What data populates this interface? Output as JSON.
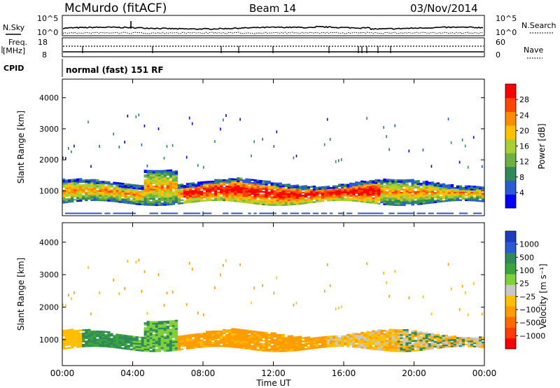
{
  "header": {
    "station": "McMurdo (fitACF)",
    "beam": "Beam 14",
    "date": "03/Nov/2014"
  },
  "status_panels": {
    "nsky_label": "N.Sky",
    "nsky_ticks": [
      "10^5",
      "10^0"
    ],
    "nsearch_label": "N.Search",
    "nsearch_ticks": [
      "10^5",
      "10^0"
    ],
    "freq_label_1": "Freq.",
    "freq_label_2": "[MHz]",
    "freq_ticks": [
      "18",
      "8"
    ],
    "nave_label": "Nave",
    "nave_ticks": [
      "60",
      "0"
    ],
    "cpid_label": "CPID",
    "cpid_value": "normal (fast) 151 RF"
  },
  "colors": {
    "power_scale": [
      "#0000ff",
      "#2a5bd6",
      "#2e8b57",
      "#6fb043",
      "#a8d030",
      "#ffc000",
      "#ff8c00",
      "#ff4500",
      "#ff0000"
    ],
    "velocity_scale": [
      "#ff0000",
      "#ff3c00",
      "#ff6a00",
      "#ff9c00",
      "#ffbf00",
      "#c8c8c8",
      "#7fd13b",
      "#3aa63a",
      "#2e8b57",
      "#2a5bd6",
      "#1e3cbf"
    ]
  },
  "chart_data": [
    {
      "type": "heatmap",
      "name": "power",
      "ylabel": "Slant Range [km]",
      "yticks": [
        "1000",
        "2000",
        "3000",
        "4000"
      ],
      "ylim": [
        200,
        4600
      ],
      "xlim": [
        0,
        24
      ],
      "colorbar_label": "Power [dB]",
      "colorbar_ticks": [
        "4",
        "8",
        "12",
        "16",
        "20",
        "24",
        "28"
      ],
      "colorbar_range": [
        0,
        32
      ]
    },
    {
      "type": "heatmap",
      "name": "velocity",
      "ylabel": "Slant Range [km]",
      "yticks": [
        "1000",
        "2000",
        "3000",
        "4000"
      ],
      "ylim": [
        200,
        4600
      ],
      "xlim": [
        0,
        24
      ],
      "colorbar_label": "Velocity [m s⁻¹]",
      "colorbar_ticks": [
        "1000",
        "500",
        "100",
        "25",
        "−25",
        "−100",
        "−500",
        "−1000"
      ]
    }
  ],
  "xaxis": {
    "label": "Time UT",
    "ticks": [
      "00:00",
      "04:00",
      "08:00",
      "12:00",
      "16:00",
      "20:00",
      "00:00"
    ]
  }
}
